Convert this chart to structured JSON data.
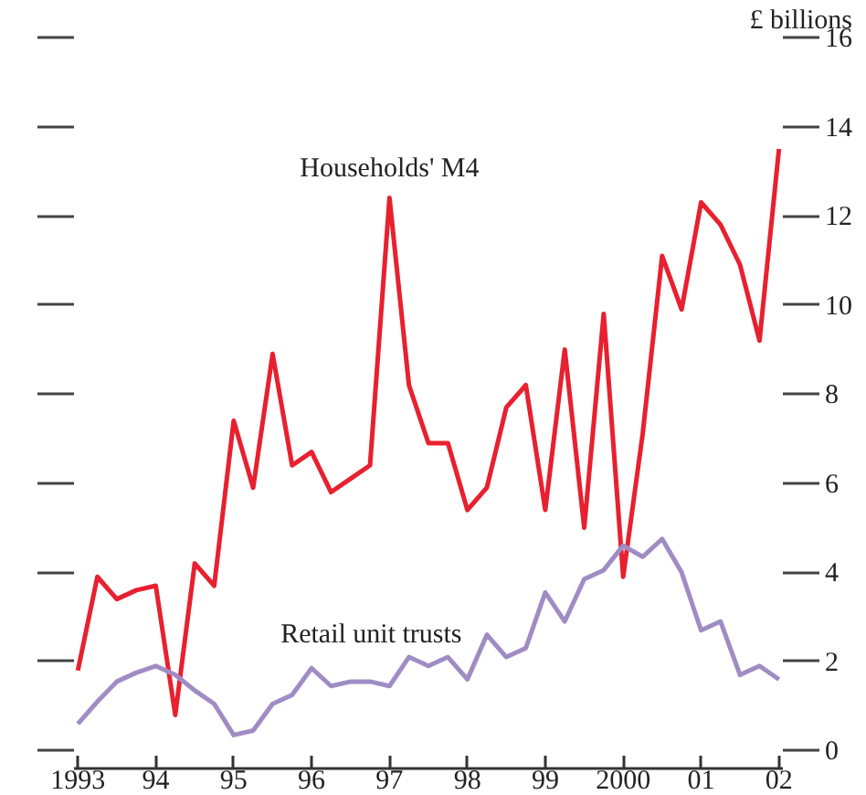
{
  "chart_data": {
    "type": "line",
    "ylabel": "£ billions",
    "x": [
      1993,
      1993.25,
      1993.5,
      1993.75,
      1994,
      1994.25,
      1994.5,
      1994.75,
      1995,
      1995.25,
      1995.5,
      1995.75,
      1996,
      1996.25,
      1996.5,
      1996.75,
      1997,
      1997.25,
      1997.5,
      1997.75,
      1998,
      1998.25,
      1998.5,
      1998.75,
      1999,
      1999.25,
      1999.5,
      1999.75,
      2000,
      2000.25,
      2000.5,
      2000.75,
      2001,
      2001.25,
      2001.5,
      2001.75,
      2002
    ],
    "series": [
      {
        "name": "Households' M4",
        "color": "#e8202f",
        "values": [
          1.8,
          3.9,
          3.4,
          3.6,
          3.7,
          0.8,
          4.2,
          3.7,
          7.4,
          5.9,
          8.9,
          6.4,
          6.7,
          5.8,
          6.1,
          6.4,
          12.4,
          8.2,
          6.9,
          6.9,
          5.4,
          5.9,
          7.7,
          8.2,
          5.4,
          9.0,
          5.0,
          9.8,
          3.9,
          7.1,
          11.1,
          9.9,
          12.3,
          11.8,
          10.9,
          9.2,
          13.5
        ]
      },
      {
        "name": "Retail unit trusts",
        "color": "#a08cc4",
        "values": [
          0.6,
          1.1,
          1.55,
          1.75,
          1.9,
          1.7,
          1.35,
          1.05,
          0.35,
          0.45,
          1.05,
          1.25,
          1.85,
          1.45,
          1.55,
          1.55,
          1.45,
          2.1,
          1.9,
          2.1,
          1.6,
          2.6,
          2.1,
          2.3,
          3.55,
          2.9,
          3.85,
          4.05,
          4.6,
          4.35,
          4.75,
          4.0,
          2.7,
          2.9,
          1.7,
          1.9,
          1.6
        ]
      }
    ],
    "xlim": [
      1992.95,
      2002.05
    ],
    "xticks": [
      {
        "value": 1993,
        "label": "1993"
      },
      {
        "value": 1994,
        "label": "94"
      },
      {
        "value": 1995,
        "label": "95"
      },
      {
        "value": 1996,
        "label": "96"
      },
      {
        "value": 1997,
        "label": "97"
      },
      {
        "value": 1998,
        "label": "98"
      },
      {
        "value": 1999,
        "label": "99"
      },
      {
        "value": 2000,
        "label": "2000"
      },
      {
        "value": 2001,
        "label": "01"
      },
      {
        "value": 2002,
        "label": "02"
      }
    ],
    "ylim": [
      -0.4,
      16
    ],
    "yticks": [
      0,
      2,
      4,
      6,
      8,
      10,
      12,
      14,
      16
    ],
    "grid": false,
    "legend": false,
    "marker": "none",
    "line_style": "solid"
  }
}
